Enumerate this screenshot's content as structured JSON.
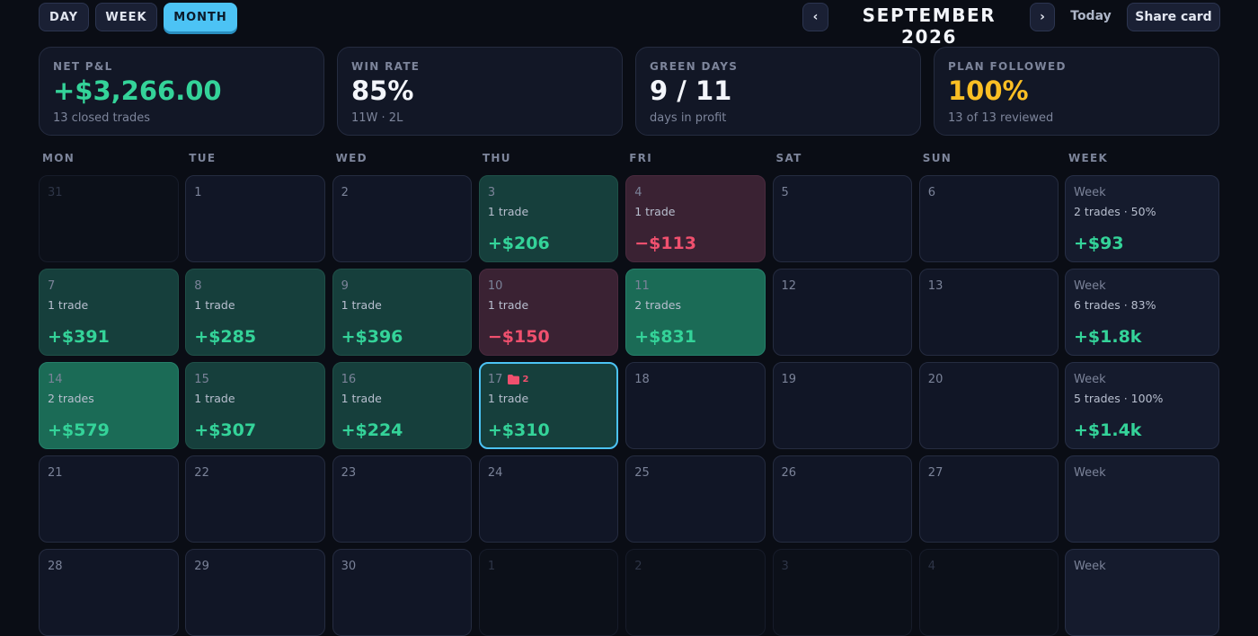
{
  "view_tabs": [
    "DAY",
    "WEEK",
    "MONTH"
  ],
  "active_tab": 2,
  "nav": {
    "prev": "‹",
    "title": "SEPTEMBER 2026",
    "next": "›",
    "today": "Today",
    "share": "Share card"
  },
  "stats": [
    {
      "label": "NET P&L",
      "value": "+$3,266.00",
      "sub": "13 closed trades",
      "color": "#34d399"
    },
    {
      "label": "WIN RATE",
      "value": "85%",
      "sub": "11W · 2L",
      "color": "#f3f5fa"
    },
    {
      "label": "GREEN DAYS",
      "value": "9 / 11",
      "sub": "days in profit",
      "color": "#f3f5fa"
    },
    {
      "label": "PLAN FOLLOWED",
      "value": "100%",
      "sub": "13 of 13 reviewed",
      "color": "#fbbf24"
    }
  ],
  "weekday_headers": [
    "MON",
    "TUE",
    "WED",
    "THU",
    "FRI",
    "SAT",
    "SUN",
    "WEEK"
  ],
  "weeks": [
    {
      "days": [
        {
          "date": "31",
          "outside": true
        },
        {
          "date": "1"
        },
        {
          "date": "2"
        },
        {
          "date": "3",
          "trades": "1 trade",
          "pnl": "+$206",
          "tone": "win"
        },
        {
          "date": "4",
          "trades": "1 trade",
          "pnl": "−$113",
          "tone": "loss"
        },
        {
          "date": "5"
        },
        {
          "date": "6"
        }
      ],
      "summary": {
        "label": "Week",
        "trades": "2 trades · 50%",
        "pnl": "+$93"
      }
    },
    {
      "days": [
        {
          "date": "7",
          "trades": "1 trade",
          "pnl": "+$391",
          "tone": "win"
        },
        {
          "date": "8",
          "trades": "1 trade",
          "pnl": "+$285",
          "tone": "win"
        },
        {
          "date": "9",
          "trades": "1 trade",
          "pnl": "+$396",
          "tone": "win"
        },
        {
          "date": "10",
          "trades": "1 trade",
          "pnl": "−$150",
          "tone": "loss"
        },
        {
          "date": "11",
          "trades": "2 trades",
          "pnl": "+$831",
          "tone": "big-win"
        },
        {
          "date": "12"
        },
        {
          "date": "13"
        }
      ],
      "summary": {
        "label": "Week",
        "trades": "6 trades · 83%",
        "pnl": "+$1.8k"
      }
    },
    {
      "days": [
        {
          "date": "14",
          "trades": "2 trades",
          "pnl": "+$579",
          "tone": "big-win"
        },
        {
          "date": "15",
          "trades": "1 trade",
          "pnl": "+$307",
          "tone": "win"
        },
        {
          "date": "16",
          "trades": "1 trade",
          "pnl": "+$224",
          "tone": "win"
        },
        {
          "date": "17",
          "trades": "1 trade",
          "pnl": "+$310",
          "tone": "win",
          "selected": true,
          "notes": "2"
        },
        {
          "date": "18"
        },
        {
          "date": "19"
        },
        {
          "date": "20"
        }
      ],
      "summary": {
        "label": "Week",
        "trades": "5 trades · 100%",
        "pnl": "+$1.4k"
      }
    },
    {
      "days": [
        {
          "date": "21"
        },
        {
          "date": "22"
        },
        {
          "date": "23"
        },
        {
          "date": "24"
        },
        {
          "date": "25"
        },
        {
          "date": "26"
        },
        {
          "date": "27"
        }
      ],
      "summary": {
        "label": "Week"
      }
    },
    {
      "days": [
        {
          "date": "28"
        },
        {
          "date": "29"
        },
        {
          "date": "30"
        },
        {
          "date": "1",
          "outside": true
        },
        {
          "date": "2",
          "outside": true
        },
        {
          "date": "3",
          "outside": true
        },
        {
          "date": "4",
          "outside": true
        }
      ],
      "summary": {
        "label": "Week"
      }
    }
  ]
}
